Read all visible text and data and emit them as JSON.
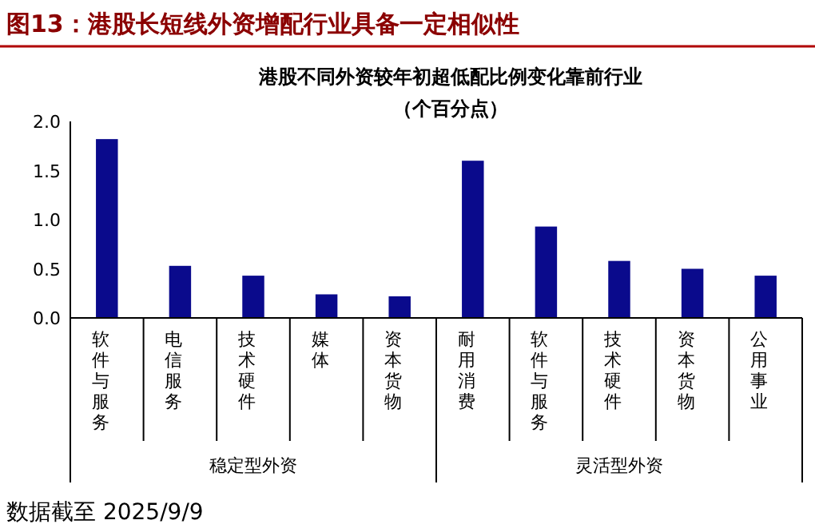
{
  "chart_data": {
    "type": "bar",
    "title": "图13：港股长短线外资增配行业具备一定相似性",
    "subtitle": "港股不同外资较年初超低配比例变化靠前行业",
    "ylabel": "（个百分点）",
    "categories": [
      "软件与服务",
      "电信服务",
      "技术硬件",
      "媒体",
      "资本货物",
      "耐用消费",
      "软件与服务",
      "技术硬件",
      "资本货物",
      "公用事业"
    ],
    "values": [
      1.82,
      0.53,
      0.43,
      0.24,
      0.22,
      1.6,
      0.93,
      0.58,
      0.5,
      0.43
    ],
    "color": "#0a0a8c",
    "ylim": [
      0,
      2.0
    ],
    "yticks": [
      {
        "value": 0,
        "label": "0.0"
      },
      {
        "value": 0.5,
        "label": "0.5"
      },
      {
        "value": 1.0,
        "label": "1.0"
      },
      {
        "value": 1.5,
        "label": "1.5"
      },
      {
        "value": 2.0,
        "label": "2.0"
      }
    ],
    "annotations": [
      "稳定型外资",
      "灵活型外资",
      "数据截至 2025/9/9"
    ]
  }
}
